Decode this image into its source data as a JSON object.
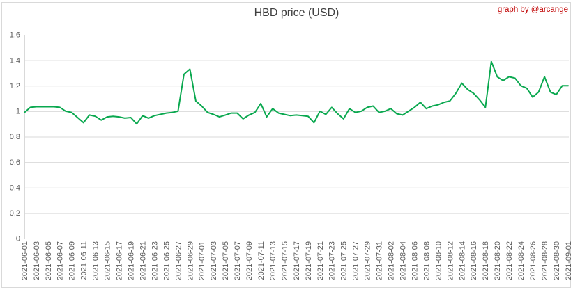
{
  "header": {
    "title": "HBD price (USD)",
    "credit": "graph by @arcange"
  },
  "colors": {
    "line": "#0aa84f",
    "credit_text": "#c00000",
    "axis_text": "#595959",
    "grid": "#d9d9d9",
    "title_text": "#3f3f3f",
    "background": "#ffffff"
  },
  "chart_data": {
    "type": "line",
    "title": "HBD price (USD)",
    "xlabel": "",
    "ylabel": "",
    "ylim": [
      0,
      1.6
    ],
    "yticks": [
      0,
      0.2,
      0.4,
      0.6,
      0.8,
      1,
      1.2,
      1.4,
      1.6
    ],
    "ytick_labels": [
      "0",
      "0,2",
      "0,4",
      "0,6",
      "0,8",
      "1",
      "1,2",
      "1,4",
      "1,6"
    ],
    "xtick_every": 2,
    "grid": "horizontal",
    "legend": "none",
    "line_color": "#0aa84f",
    "x": [
      "2021-06-01",
      "2021-06-02",
      "2021-06-03",
      "2021-06-04",
      "2021-06-05",
      "2021-06-06",
      "2021-06-07",
      "2021-06-08",
      "2021-06-09",
      "2021-06-10",
      "2021-06-11",
      "2021-06-12",
      "2021-06-13",
      "2021-06-14",
      "2021-06-15",
      "2021-06-16",
      "2021-06-17",
      "2021-06-18",
      "2021-06-19",
      "2021-06-20",
      "2021-06-21",
      "2021-06-22",
      "2021-06-23",
      "2021-06-24",
      "2021-06-25",
      "2021-06-26",
      "2021-06-27",
      "2021-06-28",
      "2021-06-29",
      "2021-06-30",
      "2021-07-01",
      "2021-07-02",
      "2021-07-03",
      "2021-07-04",
      "2021-07-05",
      "2021-07-06",
      "2021-07-07",
      "2021-07-08",
      "2021-07-09",
      "2021-07-10",
      "2021-07-11",
      "2021-07-12",
      "2021-07-13",
      "2021-07-14",
      "2021-07-15",
      "2021-07-16",
      "2021-07-17",
      "2021-07-18",
      "2021-07-19",
      "2021-07-20",
      "2021-07-21",
      "2021-07-22",
      "2021-07-23",
      "2021-07-24",
      "2021-07-25",
      "2021-07-26",
      "2021-07-27",
      "2021-07-28",
      "2021-07-29",
      "2021-07-30",
      "2021-07-31",
      "2021-08-01",
      "2021-08-02",
      "2021-08-03",
      "2021-08-04",
      "2021-08-05",
      "2021-08-06",
      "2021-08-07",
      "2021-08-08",
      "2021-08-09",
      "2021-08-10",
      "2021-08-11",
      "2021-08-12",
      "2021-08-13",
      "2021-08-14",
      "2021-08-15",
      "2021-08-16",
      "2021-08-17",
      "2021-08-18",
      "2021-08-19",
      "2021-08-20",
      "2021-08-21",
      "2021-08-22",
      "2021-08-23",
      "2021-08-24",
      "2021-08-25",
      "2021-08-26",
      "2021-08-27",
      "2021-08-28",
      "2021-08-29",
      "2021-08-30",
      "2021-08-31",
      "2021-09-01"
    ],
    "values": [
      0.99,
      1.03,
      1.035,
      1.035,
      1.035,
      1.035,
      1.03,
      1.0,
      0.99,
      0.95,
      0.91,
      0.97,
      0.96,
      0.93,
      0.955,
      0.96,
      0.955,
      0.945,
      0.95,
      0.9,
      0.965,
      0.945,
      0.965,
      0.975,
      0.985,
      0.99,
      1.0,
      1.29,
      1.33,
      1.08,
      1.04,
      0.99,
      0.975,
      0.955,
      0.97,
      0.985,
      0.985,
      0.94,
      0.97,
      0.99,
      1.06,
      0.955,
      1.02,
      0.985,
      0.975,
      0.965,
      0.97,
      0.965,
      0.96,
      0.91,
      1.0,
      0.975,
      1.03,
      0.98,
      0.94,
      1.02,
      0.99,
      1.0,
      1.03,
      1.04,
      0.99,
      1.0,
      1.02,
      0.98,
      0.97,
      1.0,
      1.03,
      1.07,
      1.02,
      1.04,
      1.05,
      1.07,
      1.08,
      1.14,
      1.22,
      1.17,
      1.14,
      1.09,
      1.03,
      1.39,
      1.27,
      1.24,
      1.27,
      1.26,
      1.2,
      1.18,
      1.11,
      1.15,
      1.27,
      1.15,
      1.13,
      1.2,
      1.2
    ]
  }
}
